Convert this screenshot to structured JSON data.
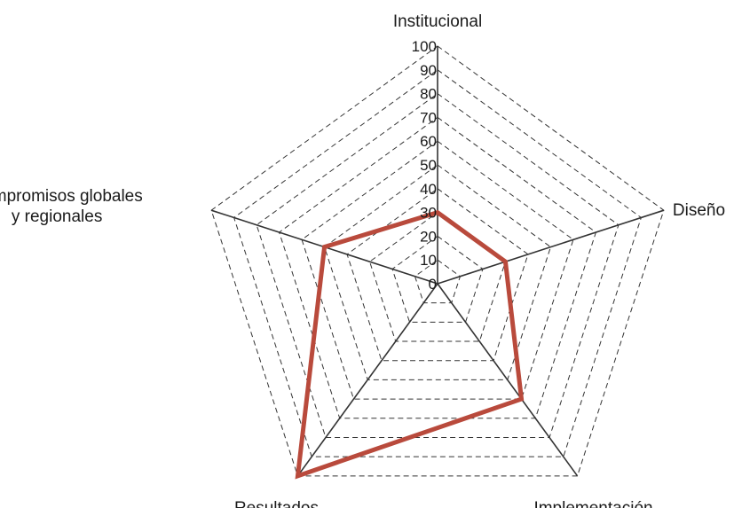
{
  "chart_data": {
    "type": "radar",
    "axes": [
      "Institucional",
      "Diseño",
      "Implementación",
      "Resultados",
      "Compromisos globales y regionales"
    ],
    "axis_label_lines": [
      [
        "Institucional"
      ],
      [
        "Diseño"
      ],
      [
        "Implementación"
      ],
      [
        "Resultados"
      ],
      [
        "Compromisos globales",
        "y regionales"
      ]
    ],
    "values": [
      30,
      30,
      60,
      100,
      50
    ],
    "range": [
      0,
      100
    ],
    "ticks": [
      0,
      10,
      20,
      30,
      40,
      50,
      60,
      70,
      80,
      90,
      100
    ],
    "grid": "dashed pentagons",
    "series_color": "#b94a3c",
    "axis_color": "#333333",
    "grid_color": "#333333"
  }
}
